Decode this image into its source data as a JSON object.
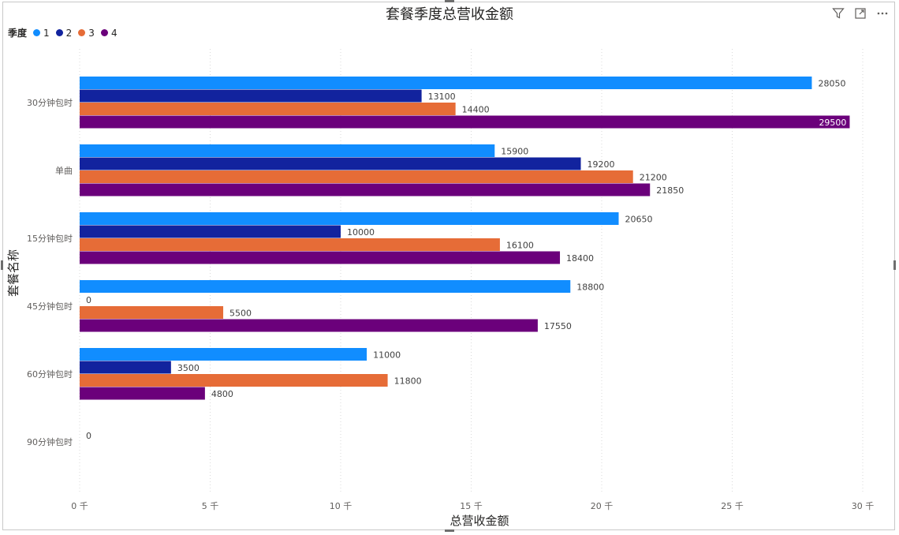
{
  "visual": {
    "title": "套餐季度总营收金额",
    "icons": [
      "filter-icon",
      "focus-mode-icon",
      "more-options-icon"
    ]
  },
  "legend": {
    "title": "季度",
    "items": [
      {
        "label": "1",
        "color": "#118DFF"
      },
      {
        "label": "2",
        "color": "#12239E"
      },
      {
        "label": "3",
        "color": "#E66C37"
      },
      {
        "label": "4",
        "color": "#6B007B"
      }
    ]
  },
  "chart_data": {
    "type": "bar",
    "orientation": "horizontal",
    "title": "套餐季度总营收金额",
    "xlabel": "总营收金额",
    "ylabel": "套餐名称",
    "xlim": [
      0,
      30000
    ],
    "xticks": [
      0,
      5000,
      10000,
      15000,
      20000,
      25000,
      30000
    ],
    "xtick_labels": [
      "0 千",
      "5 千",
      "10 千",
      "15 千",
      "20 千",
      "25 千",
      "30 千"
    ],
    "grid": "vertical-dotted",
    "legend_position": "top-left",
    "categories": [
      "30分钟包时",
      "单曲",
      "15分钟包时",
      "45分钟包时",
      "60分钟包时",
      "90分钟包时"
    ],
    "series": [
      {
        "name": "1",
        "color": "#118DFF",
        "values": [
          28050,
          15900,
          20650,
          18800,
          11000,
          null
        ]
      },
      {
        "name": "2",
        "color": "#12239E",
        "values": [
          13100,
          19200,
          10000,
          0,
          3500,
          null
        ]
      },
      {
        "name": "3",
        "color": "#E66C37",
        "values": [
          14400,
          21200,
          16100,
          5500,
          11800,
          null
        ]
      },
      {
        "name": "4",
        "color": "#6B007B",
        "values": [
          29500,
          21850,
          18400,
          17550,
          4800,
          null
        ]
      }
    ],
    "data_labels": [
      [
        "28050",
        "13100",
        "14400",
        "29500"
      ],
      [
        "15900",
        "19200",
        "21200",
        "21850"
      ],
      [
        "20650",
        "10000",
        "16100",
        "18400"
      ],
      [
        "18800",
        "0",
        "5500",
        "17550"
      ],
      [
        "11000",
        "3500",
        "11800",
        "4800"
      ],
      [
        "0"
      ]
    ]
  }
}
